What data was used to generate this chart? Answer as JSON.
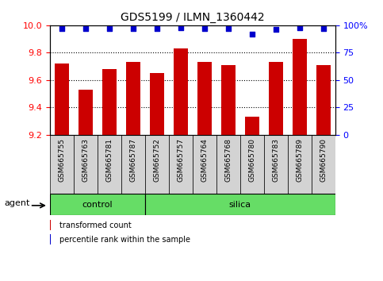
{
  "title": "GDS5199 / ILMN_1360442",
  "categories": [
    "GSM665755",
    "GSM665763",
    "GSM665781",
    "GSM665787",
    "GSM665752",
    "GSM665757",
    "GSM665764",
    "GSM665768",
    "GSM665780",
    "GSM665783",
    "GSM665789",
    "GSM665790"
  ],
  "bar_values": [
    9.72,
    9.53,
    9.68,
    9.73,
    9.65,
    9.83,
    9.73,
    9.71,
    9.33,
    9.73,
    9.9,
    9.71
  ],
  "percentile_values": [
    97,
    97,
    97,
    97,
    97,
    98,
    97,
    97,
    92,
    96,
    98,
    97
  ],
  "bar_color": "#cc0000",
  "dot_color": "#0000cc",
  "ylim_left": [
    9.2,
    10.0
  ],
  "ylim_right": [
    0,
    100
  ],
  "y_ticks_left": [
    9.2,
    9.4,
    9.6,
    9.8,
    10.0
  ],
  "y_ticks_right": [
    0,
    25,
    50,
    75,
    100
  ],
  "n_control": 4,
  "n_silica": 8,
  "agent_label": "agent",
  "control_label": "control",
  "silica_label": "silica",
  "legend_bar_label": "transformed count",
  "legend_dot_label": "percentile rank within the sample",
  "band_color": "#66dd66",
  "xtick_bg": "#d3d3d3",
  "bar_width": 0.6,
  "plot_bg": "#ffffff",
  "grid_dotted_ticks": [
    9.4,
    9.6,
    9.8
  ],
  "right_tick_labels": [
    "0",
    "25",
    "50",
    "75",
    "100%"
  ]
}
